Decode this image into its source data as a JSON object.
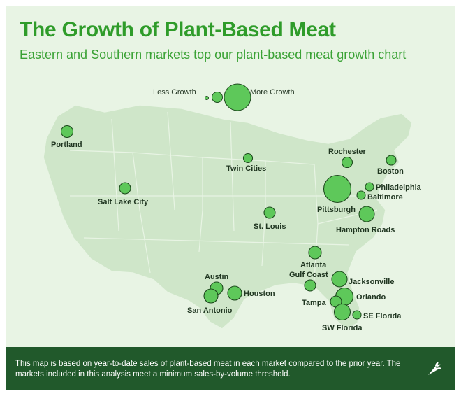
{
  "title": "The Growth of Plant-Based Meat",
  "subtitle": "Eastern and Southern markets top our plant-based meat growth chart",
  "legend": {
    "low": "Less Growth",
    "high": "More Growth"
  },
  "colors": {
    "title": "#2f9c2a",
    "bubble": "#5ec85a",
    "bubble_stroke": "#1d4a1d",
    "land": "#cfe6c9",
    "footer": "#21592b"
  },
  "markets": [
    {
      "name": "Portland",
      "size": 1
    },
    {
      "name": "Salt Lake City",
      "size": 1
    },
    {
      "name": "Twin Cities",
      "size": 0.8
    },
    {
      "name": "St. Louis",
      "size": 1
    },
    {
      "name": "Rochester",
      "size": 1
    },
    {
      "name": "Boston",
      "size": 1
    },
    {
      "name": "Philadelphia",
      "size": 0.8
    },
    {
      "name": "Baltimore",
      "size": 0.8
    },
    {
      "name": "Pittsburgh",
      "size": 2.4
    },
    {
      "name": "Hampton Roads",
      "size": 1.4
    },
    {
      "name": "Atlanta",
      "size": 1.1
    },
    {
      "name": "Gulf Coast",
      "size": 1
    },
    {
      "name": "Jacksonville",
      "size": 1.4
    },
    {
      "name": "Orlando",
      "size": 1.6
    },
    {
      "name": "Tampa",
      "size": 1
    },
    {
      "name": "SE Florida",
      "size": 0.8
    },
    {
      "name": "SW Florida",
      "size": 1.5
    },
    {
      "name": "Austin",
      "size": 1.1
    },
    {
      "name": "Houston",
      "size": 1.2
    },
    {
      "name": "San Antonio",
      "size": 1.2
    }
  ],
  "footer": {
    "text": "This map is based on year-to-date sales of plant-based meat in each market compared to the prior year. The markets included in this analysis meet a minimum sales-by-volume threshold."
  }
}
